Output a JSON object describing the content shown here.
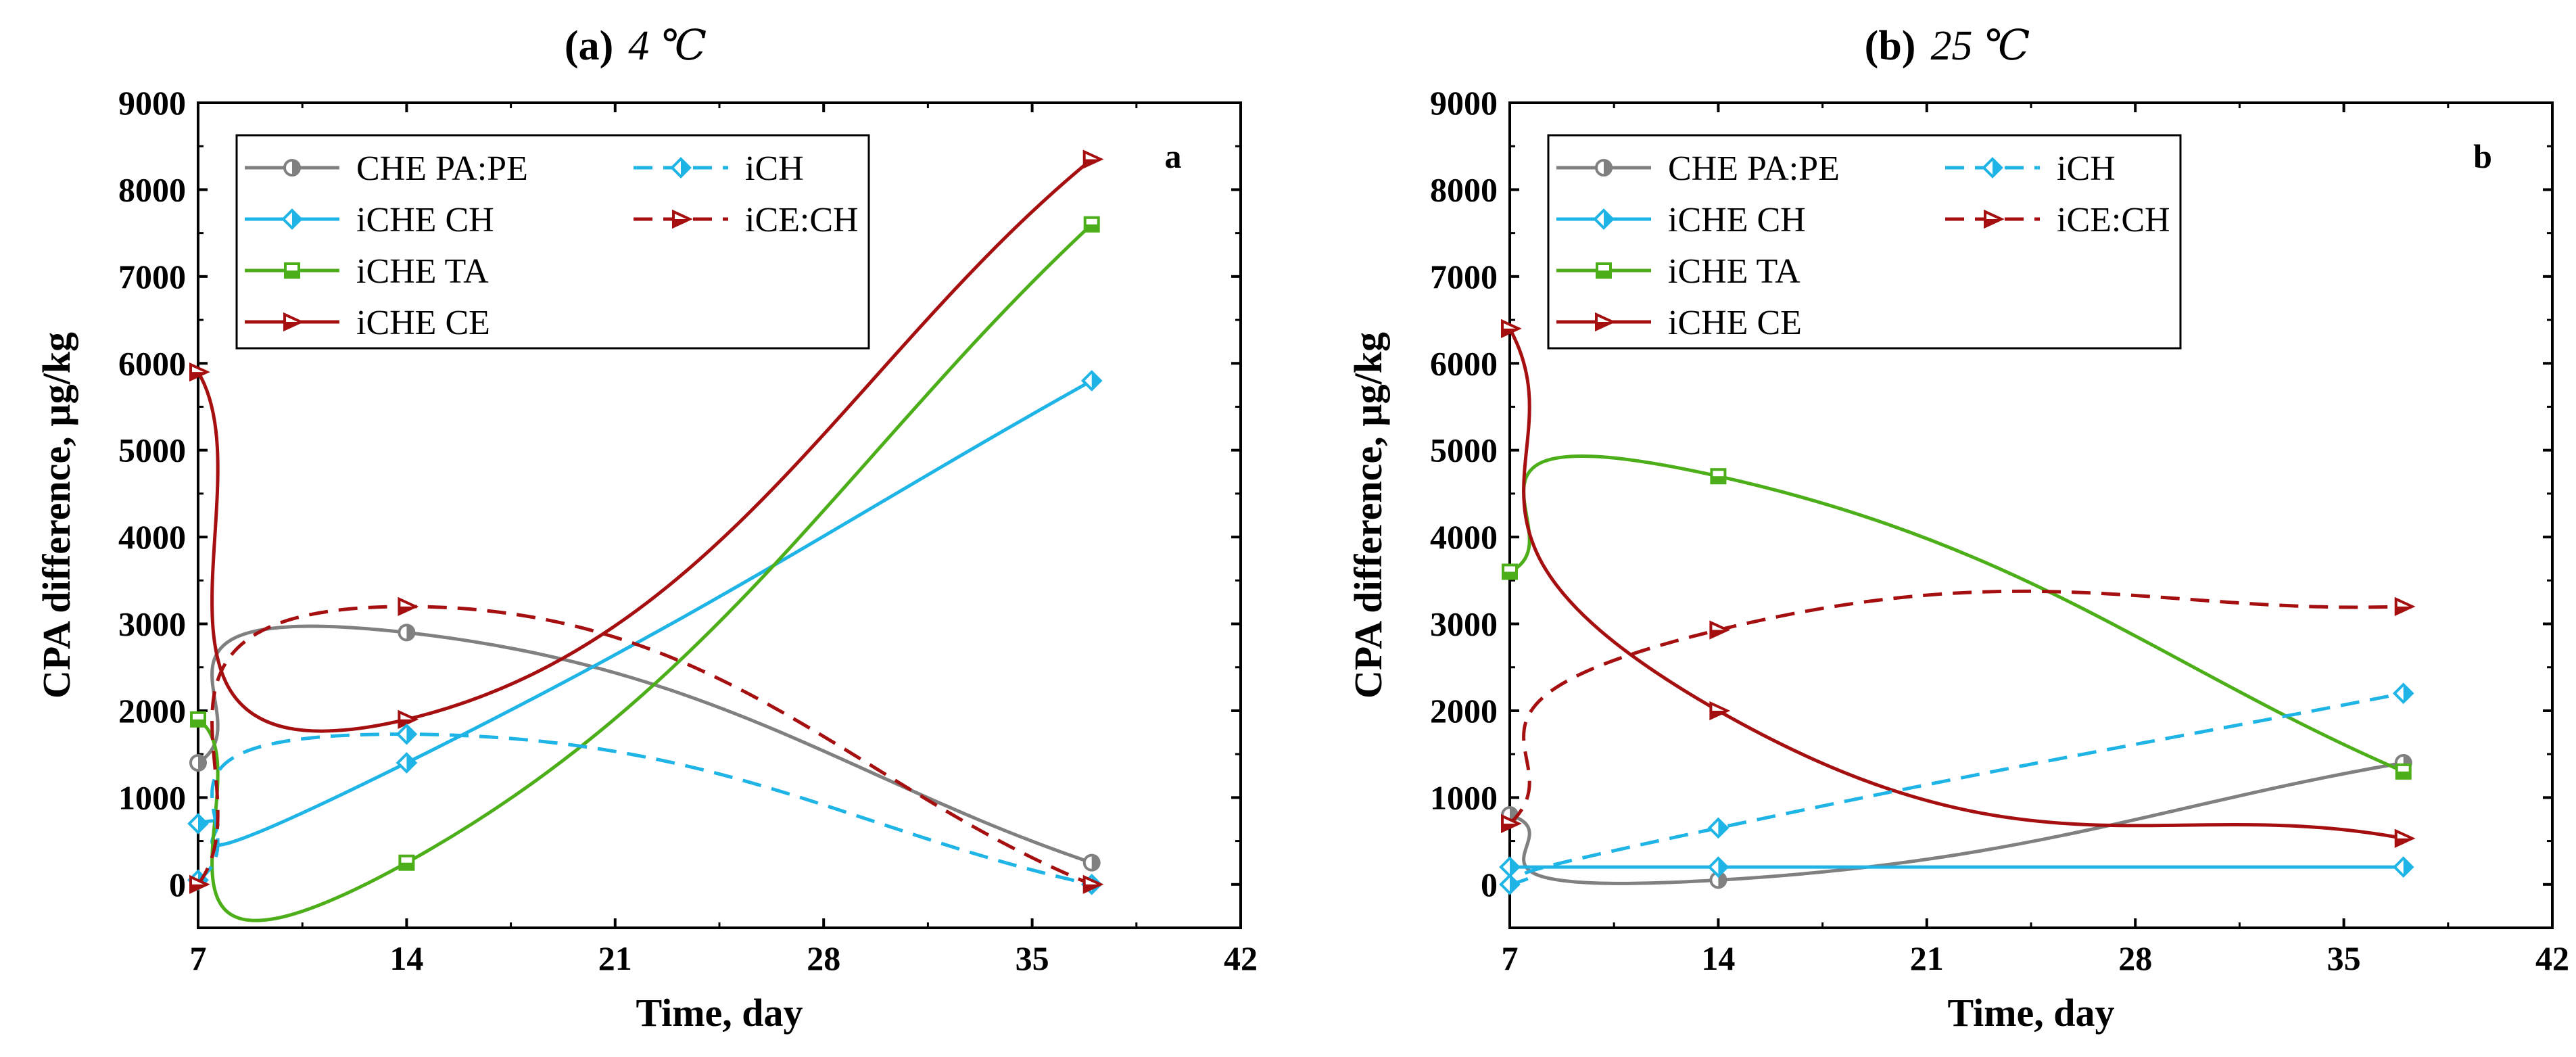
{
  "chart_data": [
    {
      "type": "line",
      "panel_label": "(a)",
      "panel_letter": "a",
      "title_temp": "4 ℃",
      "title": "(a) 4 ℃",
      "corner_label": "a",
      "xlabel": "Time, day",
      "ylabel": "CPA difference, µg/kg",
      "xlim": [
        7,
        42
      ],
      "ylim": [
        -500,
        9000
      ],
      "xticks": [
        "7",
        "14",
        "21",
        "28",
        "35",
        "42"
      ],
      "yticks": [
        "0",
        "1000",
        "2000",
        "3000",
        "4000",
        "5000",
        "6000",
        "7000",
        "8000",
        "9000"
      ],
      "x": [
        7,
        14,
        37
      ],
      "legend_position": "top-left",
      "series": [
        {
          "name": "CHE PA:PE",
          "values": [
            1400,
            2900,
            250
          ],
          "color": "#808080",
          "dash": "solid",
          "marker": "circle-half"
        },
        {
          "name": "iCHE CH",
          "values": [
            700,
            1400,
            5800
          ],
          "color": "#1EB4E6",
          "dash": "solid",
          "marker": "diamond-half"
        },
        {
          "name": "iCHE TA",
          "values": [
            1900,
            250,
            7600
          ],
          "color": "#4CAF1A",
          "dash": "solid",
          "marker": "square-half"
        },
        {
          "name": "iCHE CE",
          "values": [
            5900,
            1900,
            8350
          ],
          "color": "#A50F0F",
          "dash": "solid",
          "marker": "triangle-half"
        },
        {
          "name": "iCH",
          "values": [
            50,
            1730,
            0
          ],
          "color": "#1EB4E6",
          "dash": "dashed",
          "marker": "diamond-half"
        },
        {
          "name": "iCE:CH",
          "values": [
            0,
            3200,
            0
          ],
          "color": "#A50F0F",
          "dash": "dashed",
          "marker": "triangle-half"
        }
      ]
    },
    {
      "type": "line",
      "panel_label": "(b)",
      "panel_letter": "b",
      "title_temp": "25 ℃",
      "title": "(b) 25 ℃",
      "corner_label": "b",
      "xlabel": "Time, day",
      "ylabel": "CPA difference, µg/kg",
      "xlim": [
        7,
        42
      ],
      "ylim": [
        -500,
        9000
      ],
      "xticks": [
        "7",
        "14",
        "21",
        "28",
        "35",
        "42"
      ],
      "yticks": [
        "0",
        "1000",
        "2000",
        "3000",
        "4000",
        "5000",
        "6000",
        "7000",
        "8000",
        "9000"
      ],
      "x": [
        7,
        14,
        37
      ],
      "legend_position": "top-left",
      "series": [
        {
          "name": "CHE PA:PE",
          "values": [
            800,
            50,
            1400
          ],
          "color": "#808080",
          "dash": "solid",
          "marker": "circle-half"
        },
        {
          "name": "iCHE CH",
          "values": [
            200,
            200,
            200
          ],
          "color": "#1EB4E6",
          "dash": "solid",
          "marker": "diamond-half"
        },
        {
          "name": "iCHE TA",
          "values": [
            3600,
            4700,
            1300
          ],
          "color": "#4CAF1A",
          "dash": "solid",
          "marker": "square-half"
        },
        {
          "name": "iCHE CE",
          "values": [
            6400,
            2000,
            530
          ],
          "color": "#A50F0F",
          "dash": "solid",
          "marker": "triangle-half"
        },
        {
          "name": "iCH",
          "values": [
            0,
            650,
            2200
          ],
          "color": "#1EB4E6",
          "dash": "dashed",
          "marker": "diamond-half"
        },
        {
          "name": "iCE:CH",
          "values": [
            700,
            2930,
            3200
          ],
          "color": "#A50F0F",
          "dash": "dashed",
          "marker": "triangle-half"
        }
      ]
    }
  ]
}
